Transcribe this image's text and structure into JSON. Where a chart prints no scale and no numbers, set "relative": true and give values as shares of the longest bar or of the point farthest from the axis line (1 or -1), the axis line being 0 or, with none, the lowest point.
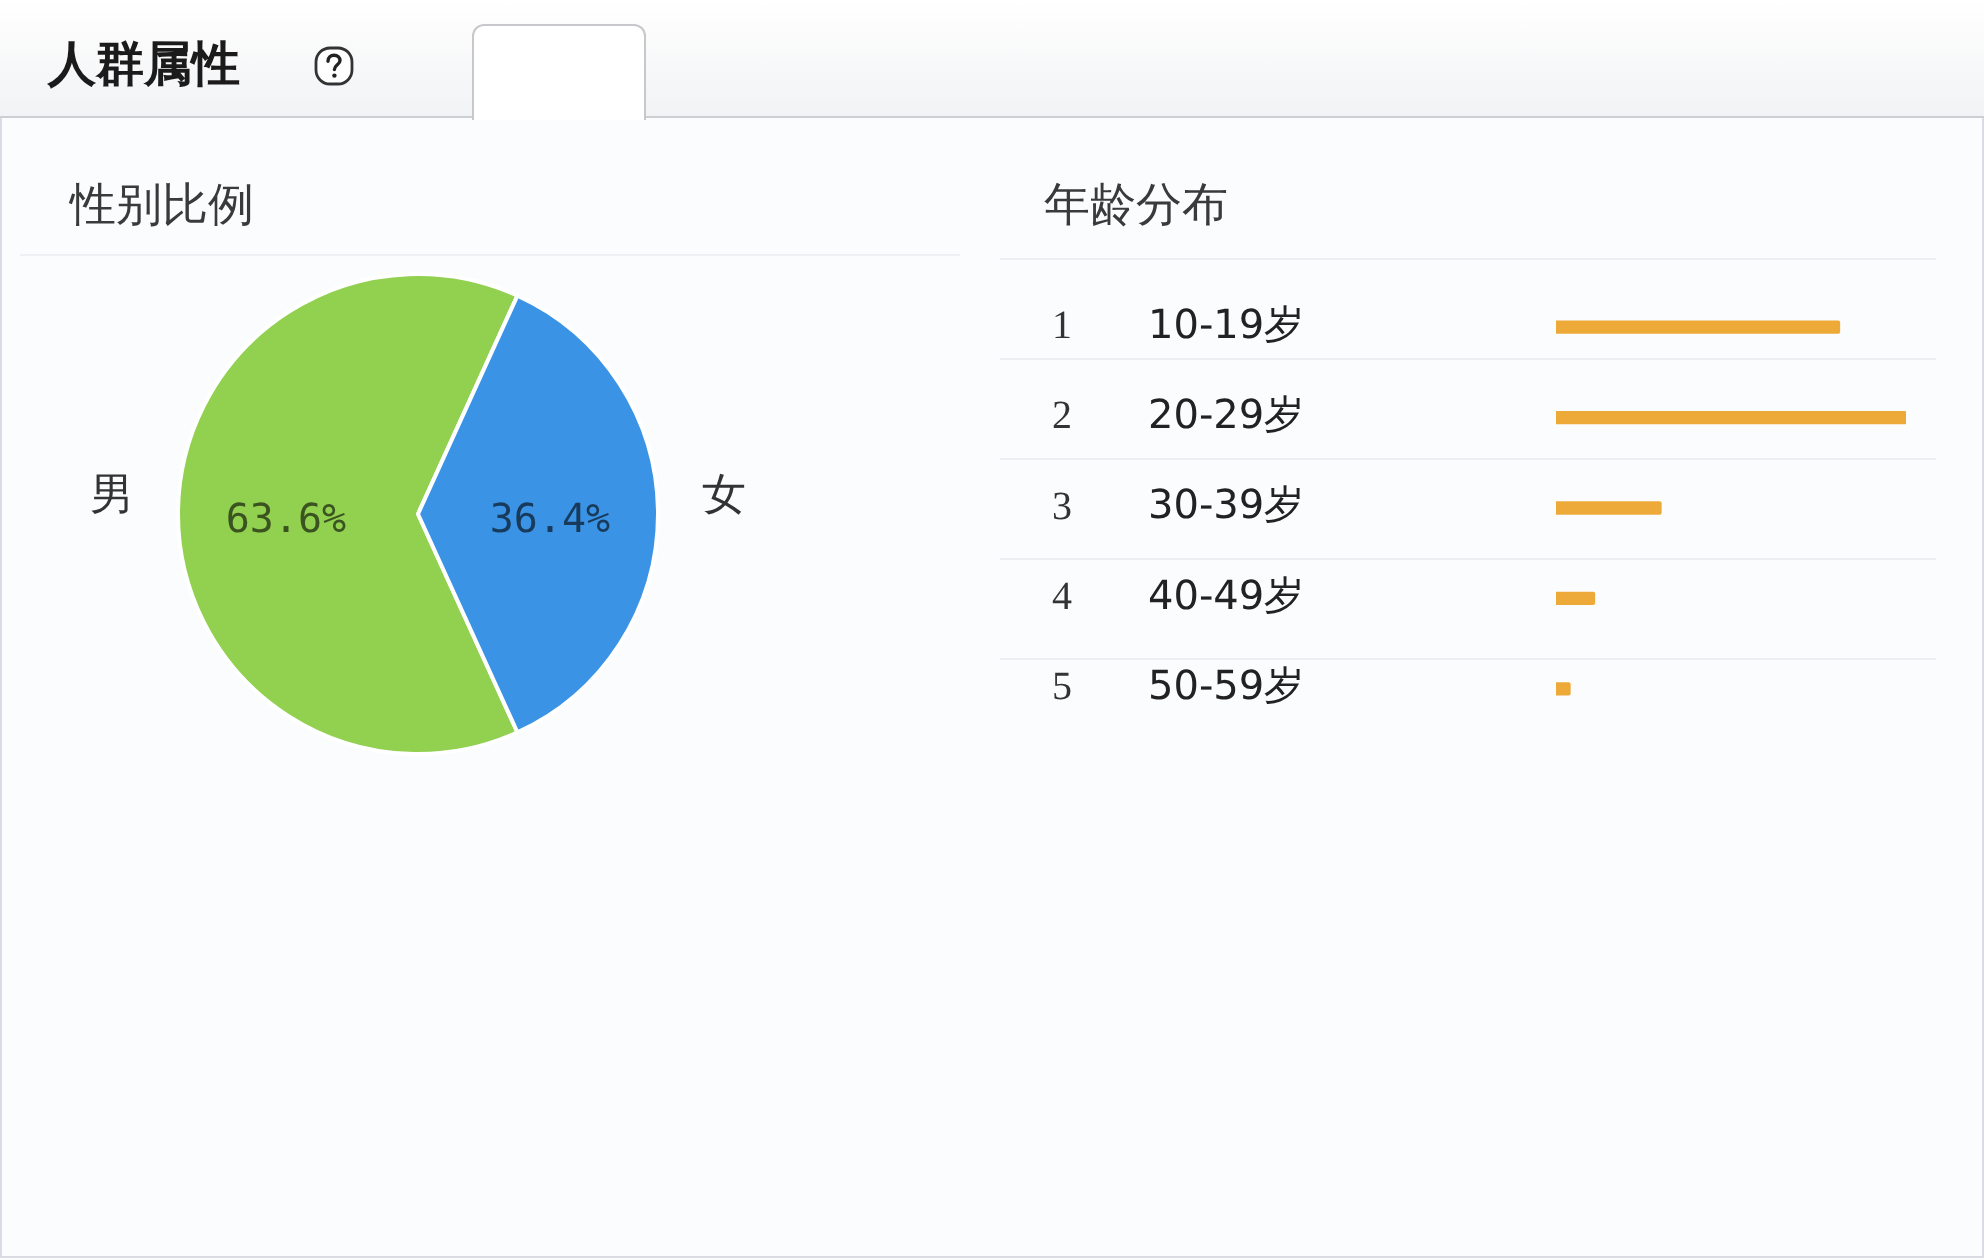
{
  "chart_data": [
    {
      "type": "other",
      "title": "人群属性"
    },
    {
      "type": "pie",
      "title": "性别比例",
      "categories": [
        "男",
        "女"
      ],
      "values": [
        63.6,
        36.4
      ],
      "colors": [
        "#92d050",
        "#3b93e6"
      ],
      "value_labels": [
        "63.6%",
        "36.4%"
      ]
    },
    {
      "type": "bar",
      "orientation": "horizontal",
      "relative": true,
      "title": "年龄分布",
      "categories": [
        "10-19岁",
        "20-29岁",
        "30-39岁",
        "40-49岁",
        "50-59岁"
      ],
      "values": [
        0.81,
        1,
        0.3,
        0.11,
        0.04
      ],
      "color": "#eeaa38",
      "annotations": [
        "1",
        "2",
        "3",
        "4",
        "5"
      ]
    }
  ]
}
